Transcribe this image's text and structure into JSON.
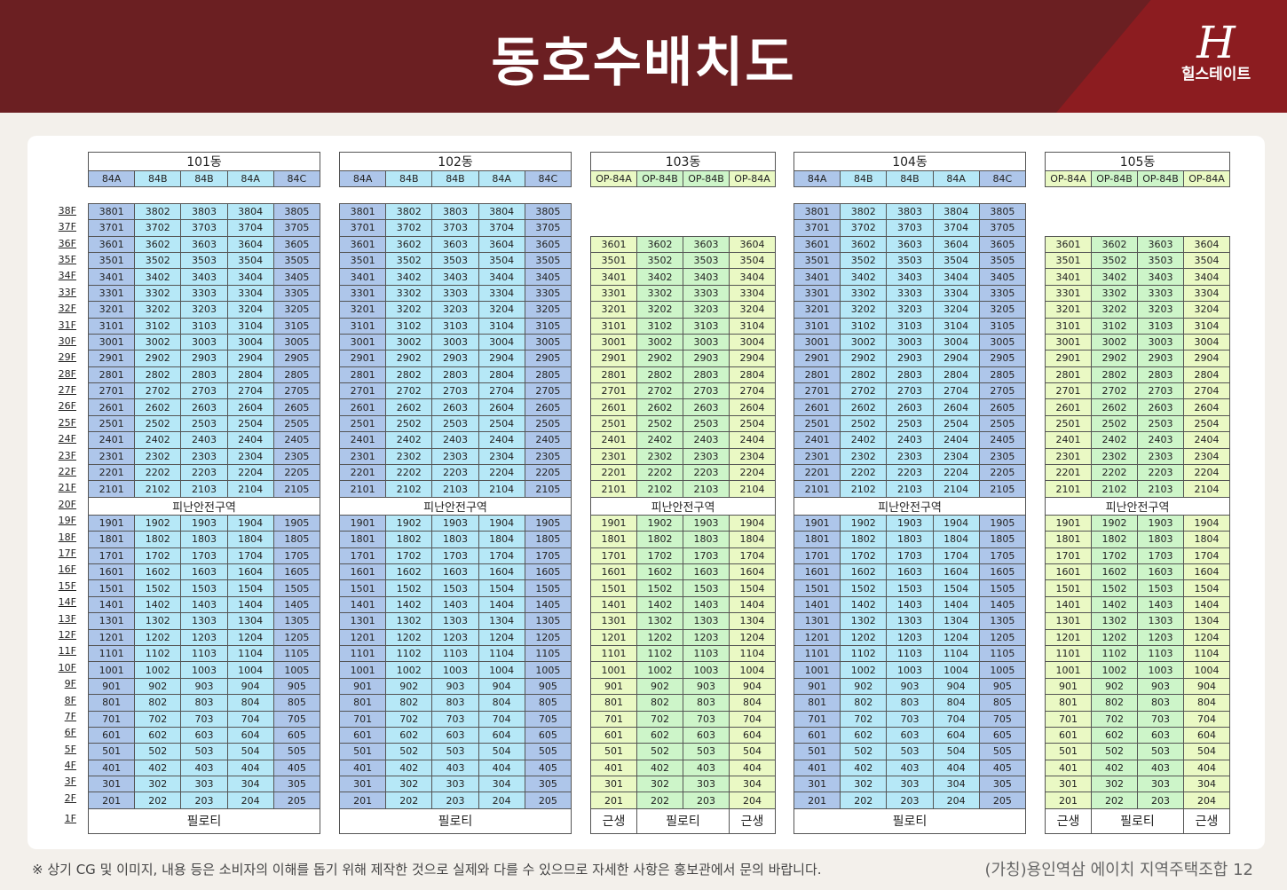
{
  "header": {
    "title": "동호수배치도",
    "logo_mark": "H",
    "logo_name": "힐스테이트"
  },
  "floors": [
    "38F",
    "37F",
    "36F",
    "35F",
    "34F",
    "33F",
    "32F",
    "31F",
    "30F",
    "29F",
    "28F",
    "27F",
    "26F",
    "25F",
    "24F",
    "23F",
    "22F",
    "21F",
    "20F",
    "19F",
    "18F",
    "17F",
    "16F",
    "15F",
    "14F",
    "13F",
    "12F",
    "11F",
    "10F",
    "9F",
    "8F",
    "7F",
    "6F",
    "5F",
    "4F",
    "3F",
    "2F",
    "1F"
  ],
  "refuge_label": "피난안전구역",
  "piloti_label": "필로티",
  "retail_label": "근생",
  "buildings": [
    {
      "name": "101동",
      "types": [
        "84A",
        "84B",
        "84B",
        "84A",
        "84C"
      ],
      "type_colors": [
        "blue",
        "cyan",
        "cyan",
        "cyan",
        "blue"
      ],
      "top": 38,
      "cols": 5,
      "ground": "piloti"
    },
    {
      "name": "102동",
      "types": [
        "84A",
        "84B",
        "84B",
        "84A",
        "84C"
      ],
      "type_colors": [
        "blue",
        "cyan",
        "cyan",
        "cyan",
        "blue"
      ],
      "top": 38,
      "cols": 5,
      "ground": "piloti"
    },
    {
      "name": "103동",
      "types": [
        "OP-84A",
        "OP-84B",
        "OP-84B",
        "OP-84A"
      ],
      "type_colors": [
        "green",
        "dg",
        "dg",
        "green"
      ],
      "top": 36,
      "cols": 4,
      "ground": "retail"
    },
    {
      "name": "104동",
      "types": [
        "84A",
        "84B",
        "84B",
        "84A",
        "84C"
      ],
      "type_colors": [
        "blue",
        "cyan",
        "cyan",
        "cyan",
        "blue"
      ],
      "top": 38,
      "cols": 5,
      "ground": "piloti"
    },
    {
      "name": "105동",
      "types": [
        "OP-84A",
        "OP-84B",
        "OP-84B",
        "OP-84A"
      ],
      "type_colors": [
        "green",
        "dg",
        "dg",
        "green"
      ],
      "top": 36,
      "cols": 4,
      "ground": "retail"
    }
  ],
  "footer": {
    "note": "※ 상기 CG 및 이미지, 내용 등은 소비자의 이해를 돕기 위해 제작한 것으로 실제와 다를 수 있으므로 자세한 사항은 홍보관에서 문의 바랍니다.",
    "org": "(가칭)용인역삼 에이치 지역주택조합",
    "page": "12"
  }
}
